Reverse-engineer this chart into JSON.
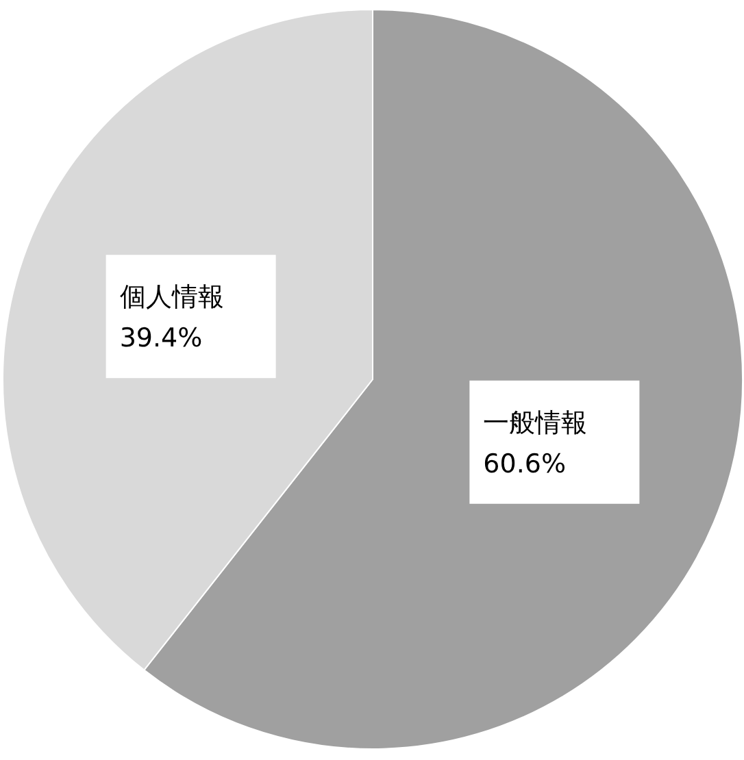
{
  "chart_data": {
    "type": "pie",
    "categories": [
      "一般情報",
      "個人情報"
    ],
    "values": [
      60.6,
      39.4
    ],
    "colors": [
      "#a0a0a0",
      "#d9d9d9"
    ],
    "value_labels": [
      "60.6%",
      "39.4%"
    ]
  }
}
